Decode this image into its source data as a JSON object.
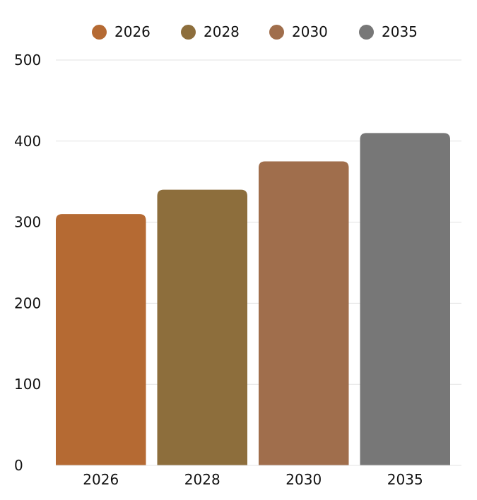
{
  "chart_data": {
    "type": "bar",
    "categories": [
      "2026",
      "2028",
      "2030",
      "2035"
    ],
    "values": [
      310,
      340,
      375,
      410
    ],
    "colors": [
      "#b56a33",
      "#8d6e3c",
      "#a06e4c",
      "#777777"
    ],
    "legend": [
      {
        "label": "2026",
        "color": "#b56a33"
      },
      {
        "label": "2028",
        "color": "#8d6e3c"
      },
      {
        "label": "2030",
        "color": "#a06e4c"
      },
      {
        "label": "2035",
        "color": "#777777"
      }
    ],
    "legend_position": "top-center",
    "ylim": [
      0,
      500
    ],
    "yticks": [
      "0",
      "100",
      "200",
      "300",
      "400",
      "500"
    ],
    "grid": true
  }
}
